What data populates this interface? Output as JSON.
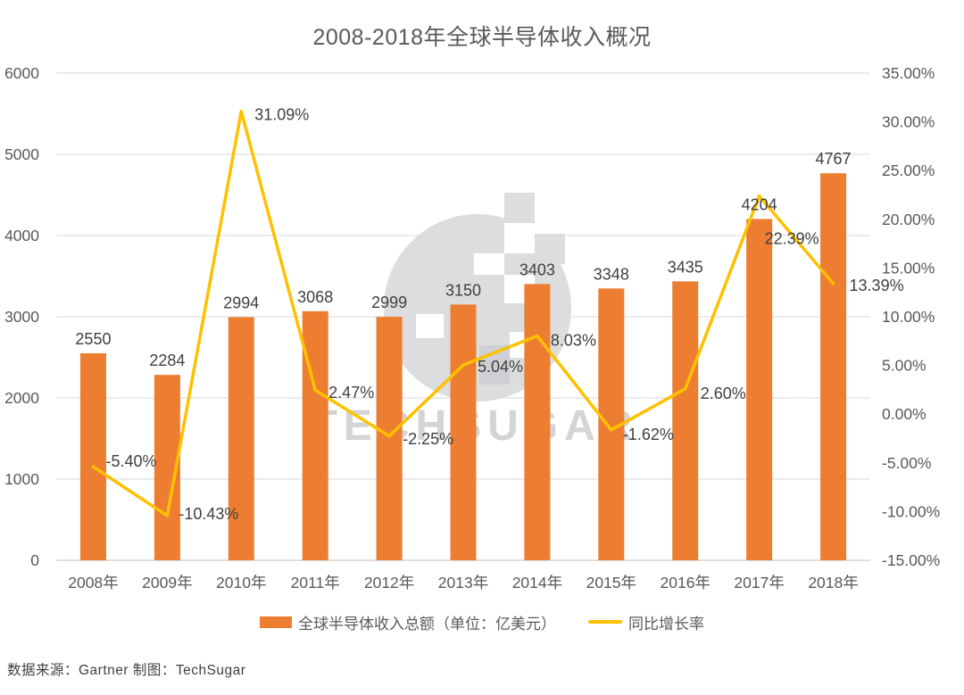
{
  "title": "2008-2018年全球半导体收入概况",
  "source_note": "数据来源：Gartner  制图：TechSugar",
  "watermark": {
    "text": "TECHSUGAR"
  },
  "legend": [
    {
      "label": "全球半导体收入总额（单位：亿美元）",
      "color": "#ED7D31",
      "type": "bar"
    },
    {
      "label": "同比增长率",
      "color": "#FFC000",
      "type": "line"
    }
  ],
  "chart_data": {
    "type": "bar+line combo",
    "title": "2008-2018年全球半导体收入概况",
    "categories": [
      "2008年",
      "2009年",
      "2010年",
      "2011年",
      "2012年",
      "2013年",
      "2014年",
      "2015年",
      "2016年",
      "2017年",
      "2018年"
    ],
    "series": [
      {
        "name": "全球半导体收入总额（单位：亿美元）",
        "type": "bar",
        "axis": "left",
        "color": "#ED7D31",
        "values": [
          2550,
          2284,
          2994,
          3068,
          2999,
          3150,
          3403,
          3348,
          3435,
          4204,
          4767
        ],
        "value_labels": [
          "2550",
          "2284",
          "2994",
          "3068",
          "2999",
          "3150",
          "3403",
          "3348",
          "3435",
          "4204",
          "4767"
        ]
      },
      {
        "name": "同比增长率",
        "type": "line",
        "axis": "right",
        "color": "#FFC000",
        "values": [
          -5.4,
          -10.43,
          31.09,
          2.47,
          -2.25,
          5.04,
          8.03,
          -1.62,
          2.6,
          22.39,
          13.39
        ],
        "value_labels": [
          "-5.40%",
          "-10.43%",
          "31.09%",
          "2.47%",
          "-2.25%",
          "5.04%",
          "8.03%",
          "-1.62%",
          "2.60%",
          "22.39%",
          "13.39%"
        ]
      }
    ],
    "left_axis": {
      "min": 0,
      "max": 6000,
      "step": 1000,
      "ticks": [
        "0",
        "1000",
        "2000",
        "3000",
        "4000",
        "5000",
        "6000"
      ]
    },
    "right_axis": {
      "min": -15,
      "max": 35,
      "step": 5,
      "ticks": [
        "-15.00%",
        "-10.00%",
        "-5.00%",
        "0.00%",
        "5.00%",
        "10.00%",
        "15.00%",
        "20.00%",
        "25.00%",
        "30.00%",
        "35.00%"
      ]
    },
    "grid": "horizontal",
    "legend_position": "bottom",
    "colors": {
      "bar": "#ED7D31",
      "line": "#FFC000",
      "gridline": "#D9D9D9",
      "axis_baseline": "#BFBFBF",
      "axis_text": "#595959",
      "data_label_text": "#3f3f3f",
      "watermark_gray": "#DBDDDE"
    }
  }
}
